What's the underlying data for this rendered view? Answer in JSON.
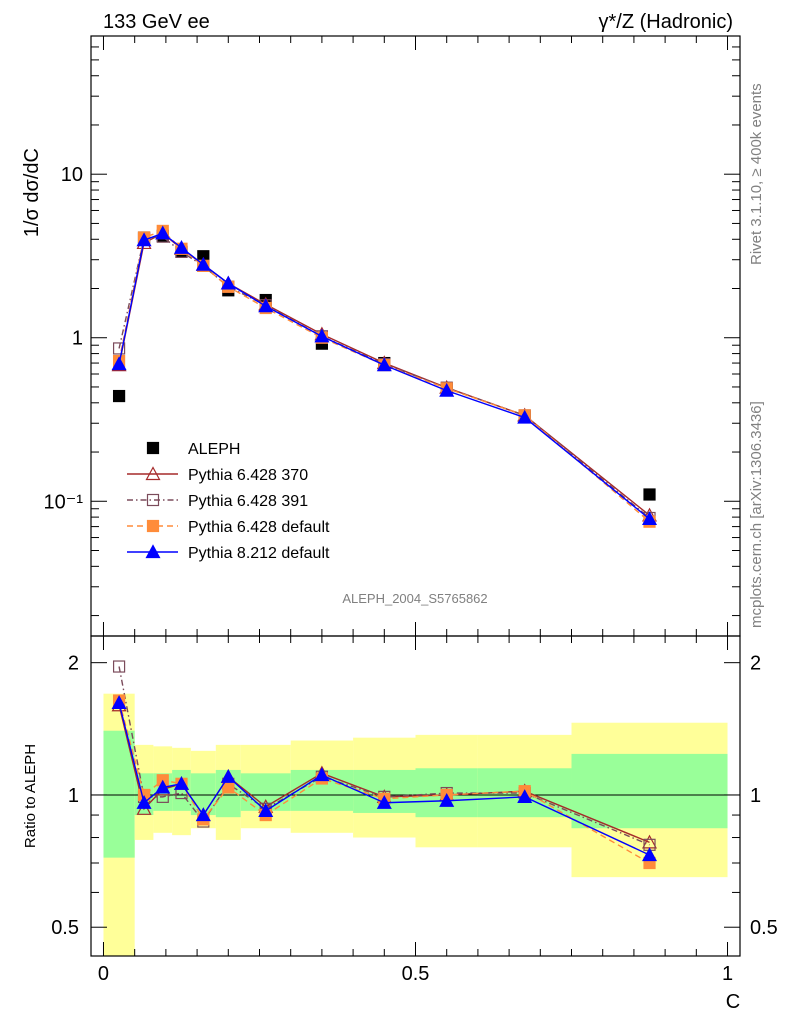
{
  "header": {
    "energy_label": "133 GeV ee",
    "process_label": "γ*/Z (Hadronic)"
  },
  "side": {
    "rivet_label": "Rivet 3.1.10, ≥ 400k events",
    "source_label": "mcplots.cern.ch [arXiv:1306.3436]"
  },
  "analysis_label": "ALEPH_2004_S5765862",
  "chart_data": [
    {
      "type": "line",
      "title": "",
      "xlabel": "C",
      "ylabel": "1/σ dσ/dC",
      "yscale": "log",
      "xlim": [
        -0.02,
        1.02
      ],
      "ylim": [
        0.015,
        70
      ],
      "y_tick_labels": [
        "10⁻¹",
        "1",
        "10"
      ],
      "y_tick_values": [
        0.1,
        1,
        10
      ],
      "x": [
        0.025,
        0.065,
        0.095,
        0.125,
        0.16,
        0.2,
        0.26,
        0.35,
        0.45,
        0.55,
        0.675,
        0.875
      ],
      "legend": [
        "ALEPH",
        "Pythia 6.428 370",
        "Pythia 6.428 391",
        "Pythia 6.428 default",
        "Pythia 8.212 default"
      ],
      "series": [
        {
          "name": "ALEPH",
          "color": "#000000",
          "marker": "filled-square",
          "line": "none",
          "values": [
            0.44,
            4.1,
            4.2,
            3.35,
            3.15,
            1.95,
            1.7,
            0.92,
            0.7,
            0.49,
            0.33,
            0.11
          ]
        },
        {
          "name": "Pythia 6.428 370",
          "color": "#a52a2a",
          "marker": "open-triangle",
          "line": "solid",
          "values": [
            0.68,
            3.8,
            4.35,
            3.5,
            2.8,
            2.15,
            1.6,
            1.05,
            0.7,
            0.495,
            0.335,
            0.082
          ]
        },
        {
          "name": "Pythia 6.428 391",
          "color": "#7b4b5b",
          "marker": "open-square",
          "line": "dashdot",
          "values": [
            0.86,
            4.05,
            4.15,
            3.35,
            2.75,
            2.05,
            1.58,
            1.02,
            0.69,
            0.495,
            0.335,
            0.079
          ]
        },
        {
          "name": "Pythia 6.428 default",
          "color": "#ff8c3a",
          "marker": "filled-square",
          "line": "dashed",
          "values": [
            0.72,
            4.1,
            4.5,
            3.5,
            2.75,
            2.05,
            1.52,
            1.0,
            0.68,
            0.49,
            0.335,
            0.075
          ]
        },
        {
          "name": "Pythia 8.212 default",
          "color": "#0000ff",
          "marker": "filled-triangle",
          "line": "solid",
          "values": [
            0.69,
            3.95,
            4.35,
            3.55,
            2.8,
            2.15,
            1.56,
            1.02,
            0.68,
            0.475,
            0.325,
            0.078
          ]
        }
      ]
    },
    {
      "type": "line",
      "title": "",
      "xlabel": "C",
      "ylabel": "Ratio to ALEPH",
      "yscale": "log",
      "xlim": [
        -0.02,
        1.02
      ],
      "ylim": [
        0.43,
        2.3
      ],
      "x_tick_labels": [
        "0",
        "0.5",
        "1"
      ],
      "x_tick_values": [
        0,
        0.5,
        1
      ],
      "y_tick_labels": [
        "0.5",
        "1",
        "2"
      ],
      "y_tick_values": [
        0.5,
        1,
        2
      ],
      "reference_line": 1,
      "x": [
        0.025,
        0.065,
        0.095,
        0.125,
        0.16,
        0.2,
        0.26,
        0.35,
        0.45,
        0.55,
        0.675,
        0.875
      ],
      "bands": {
        "edges": [
          0.0,
          0.05,
          0.08,
          0.11,
          0.14,
          0.18,
          0.22,
          0.3,
          0.4,
          0.5,
          0.6,
          0.75,
          1.0
        ],
        "inner_color": "#99ff99",
        "outer_color": "#ffff99",
        "inner_low": [
          0.72,
          0.9,
          0.92,
          0.92,
          0.9,
          0.89,
          0.92,
          0.92,
          0.91,
          0.89,
          0.89,
          0.84
        ],
        "inner_high": [
          1.4,
          1.12,
          1.12,
          1.14,
          1.12,
          1.14,
          1.12,
          1.14,
          1.14,
          1.15,
          1.15,
          1.24
        ],
        "outer_low": [
          0.4,
          0.79,
          0.82,
          0.81,
          0.84,
          0.79,
          0.84,
          0.82,
          0.8,
          0.76,
          0.76,
          0.65
        ],
        "outer_high": [
          1.7,
          1.3,
          1.29,
          1.28,
          1.26,
          1.3,
          1.3,
          1.33,
          1.35,
          1.37,
          1.37,
          1.46
        ]
      },
      "series": [
        {
          "name": "Pythia 6.428 370",
          "color": "#a52a2a",
          "marker": "open-triangle",
          "line": "solid",
          "values": [
            1.6,
            0.93,
            1.03,
            1.06,
            0.9,
            1.1,
            0.94,
            1.12,
            0.99,
            1.0,
            1.02,
            0.78
          ]
        },
        {
          "name": "Pythia 6.428 391",
          "color": "#7b4b5b",
          "marker": "open-square",
          "line": "dashdot",
          "values": [
            1.96,
            0.99,
            0.99,
            1.01,
            0.87,
            1.06,
            0.93,
            1.1,
            0.99,
            1.01,
            1.01,
            0.77
          ]
        },
        {
          "name": "Pythia 6.428 default",
          "color": "#ff8c3a",
          "marker": "filled-square",
          "line": "dashed",
          "values": [
            1.64,
            1.0,
            1.08,
            1.06,
            0.88,
            1.04,
            0.9,
            1.09,
            0.98,
            1.0,
            1.02,
            0.7
          ]
        },
        {
          "name": "Pythia 8.212 default",
          "color": "#0000ff",
          "marker": "filled-triangle",
          "line": "solid",
          "values": [
            1.62,
            0.96,
            1.04,
            1.06,
            0.9,
            1.1,
            0.92,
            1.11,
            0.96,
            0.97,
            0.99,
            0.73
          ]
        }
      ]
    }
  ]
}
